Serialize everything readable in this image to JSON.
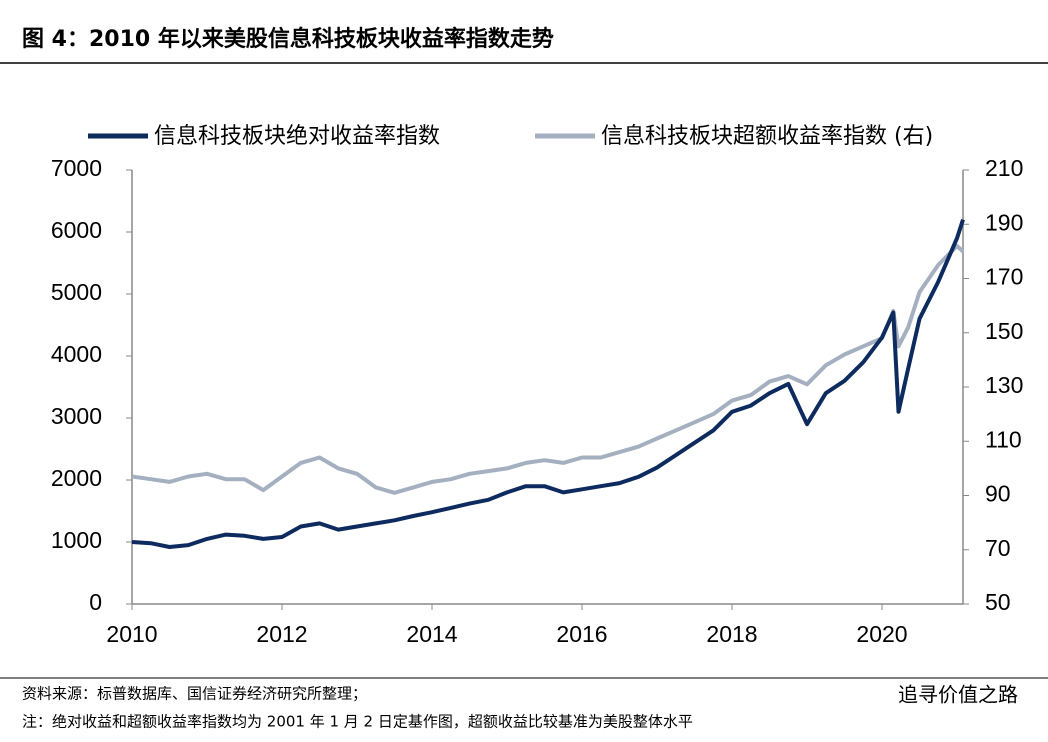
{
  "chart_data": {
    "type": "line",
    "title": "图 4：2010 年以来美股信息科技板块收益率指数走势",
    "x": [
      2010,
      2010.25,
      2010.5,
      2010.75,
      2011,
      2011.25,
      2011.5,
      2011.75,
      2012,
      2012.25,
      2012.5,
      2012.75,
      2013,
      2013.25,
      2013.5,
      2013.75,
      2014,
      2014.25,
      2014.5,
      2014.75,
      2015,
      2015.25,
      2015.5,
      2015.75,
      2016,
      2016.25,
      2016.5,
      2016.75,
      2017,
      2017.25,
      2017.5,
      2017.75,
      2018,
      2018.25,
      2018.5,
      2018.75,
      2019,
      2019.25,
      2019.5,
      2019.75,
      2020,
      2020.15,
      2020.22,
      2020.35,
      2020.5,
      2020.75,
      2021,
      2021.08
    ],
    "series": [
      {
        "name": "信息科技板块绝对收益率指数",
        "color": "#0d2b5e",
        "values": [
          1000,
          980,
          920,
          950,
          1050,
          1120,
          1100,
          1050,
          1080,
          1250,
          1300,
          1200,
          1250,
          1300,
          1350,
          1420,
          1480,
          1550,
          1620,
          1680,
          1800,
          1900,
          1900,
          1800,
          1850,
          1900,
          1950,
          2050,
          2200,
          2400,
          2600,
          2800,
          3100,
          3200,
          3400,
          3550,
          2900,
          3400,
          3600,
          3900,
          4300,
          4700,
          3100,
          3800,
          4600,
          5200,
          5900,
          6200
        ]
      },
      {
        "name": "信息科技板块超额收益率指数 (右)",
        "color": "#a4afc0",
        "axis": "y2",
        "values": [
          97,
          96,
          95,
          97,
          98,
          96,
          96,
          92,
          97,
          102,
          104,
          100,
          98,
          93,
          91,
          93,
          95,
          96,
          98,
          99,
          100,
          102,
          103,
          102,
          104,
          104,
          106,
          108,
          111,
          114,
          117,
          120,
          125,
          127,
          132,
          134,
          131,
          138,
          142,
          145,
          148,
          158,
          145,
          152,
          165,
          175,
          182,
          180
        ]
      }
    ],
    "xlim": [
      2010,
      2021.08
    ],
    "xticks": [
      2010,
      2012,
      2014,
      2016,
      2018,
      2020
    ],
    "ylim": [
      0,
      7000
    ],
    "yticks": [
      0,
      1000,
      2000,
      3000,
      4000,
      5000,
      6000,
      7000
    ],
    "y2lim": [
      50,
      210
    ],
    "y2ticks": [
      50,
      70,
      90,
      110,
      130,
      150,
      170,
      190,
      210
    ],
    "source": "资料来源：标普数据库、国信证券经济研究所整理；",
    "note": "注：绝对收益和超额收益率指数均为 2001 年 1 月 2 日定基作图，超额收益比较基准为美股整体水平"
  },
  "watermark": "追寻价值之路"
}
